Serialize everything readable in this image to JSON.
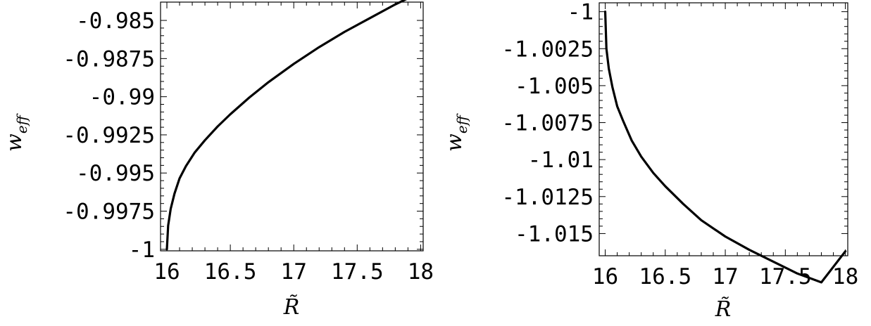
{
  "chart_data": [
    {
      "type": "line",
      "title": "",
      "xlabel": "R̃",
      "ylabel": "w_eff",
      "ylabel_main": "w",
      "ylabel_sub": "eff",
      "xlim": [
        15.95,
        18.02
      ],
      "ylim": [
        -1.0001,
        -0.9838
      ],
      "xticks": [
        16,
        16.5,
        17,
        17.5,
        18
      ],
      "xtick_labels": [
        "16",
        "16.5",
        "17",
        "17.5",
        "18"
      ],
      "yticks": [
        -1,
        -0.9975,
        -0.995,
        -0.9925,
        -0.99,
        -0.9875,
        -0.985
      ],
      "ytick_labels": [
        "-1",
        "-0.9975",
        "-0.995",
        "-0.9925",
        "-0.99",
        "-0.9875",
        "-0.985"
      ],
      "grid": false,
      "series": [
        {
          "x": [
            16.0,
            16.01,
            16.03,
            16.06,
            16.1,
            16.15,
            16.22,
            16.3,
            16.4,
            16.5,
            16.65,
            16.8,
            17.0,
            17.2,
            17.4,
            17.6,
            17.8,
            18.0
          ],
          "y": [
            -1.0,
            -0.99845,
            -0.99735,
            -0.99635,
            -0.99535,
            -0.99455,
            -0.99365,
            -0.99285,
            -0.99195,
            -0.99115,
            -0.99005,
            -0.98905,
            -0.98785,
            -0.98675,
            -0.98575,
            -0.98485,
            -0.98395,
            -0.98315
          ]
        }
      ]
    },
    {
      "type": "line",
      "title": "",
      "xlabel": "R̃",
      "ylabel": "w_eff",
      "ylabel_main": "w",
      "ylabel_sub": "eff",
      "xlim": [
        15.95,
        18.02
      ],
      "ylim": [
        -1.0165,
        -0.9994
      ],
      "xticks": [
        16,
        16.5,
        17,
        17.5,
        18
      ],
      "xtick_labels": [
        "16",
        "16.5",
        "17",
        "17.5",
        "18"
      ],
      "yticks": [
        -1,
        -1.0025,
        -1.005,
        -1.0075,
        -1.01,
        -1.0125,
        -1.015
      ],
      "ytick_labels": [
        "-1",
        "-1.0025",
        "-1.005",
        "-1.0075",
        "-1.01",
        "-1.0125",
        "-1.015"
      ],
      "grid": false,
      "series": [
        {
          "x": [
            16.0,
            16.01,
            16.03,
            16.06,
            16.1,
            16.15,
            16.22,
            16.3,
            16.4,
            16.5,
            16.65,
            16.8,
            17.0,
            17.2,
            17.4,
            17.6,
            17.8,
            18.0
          ],
          "y": [
            -1.0,
            -1.0025,
            -1.00385,
            -1.0051,
            -1.0064,
            -1.0074,
            -1.0087,
            -1.0098,
            -1.0109,
            -1.0118,
            -1.013,
            -1.0141,
            -1.0152,
            -1.0161,
            -1.0169,
            -1.0177,
            -1.0183,
            -1.0162
          ]
        }
      ]
    }
  ]
}
